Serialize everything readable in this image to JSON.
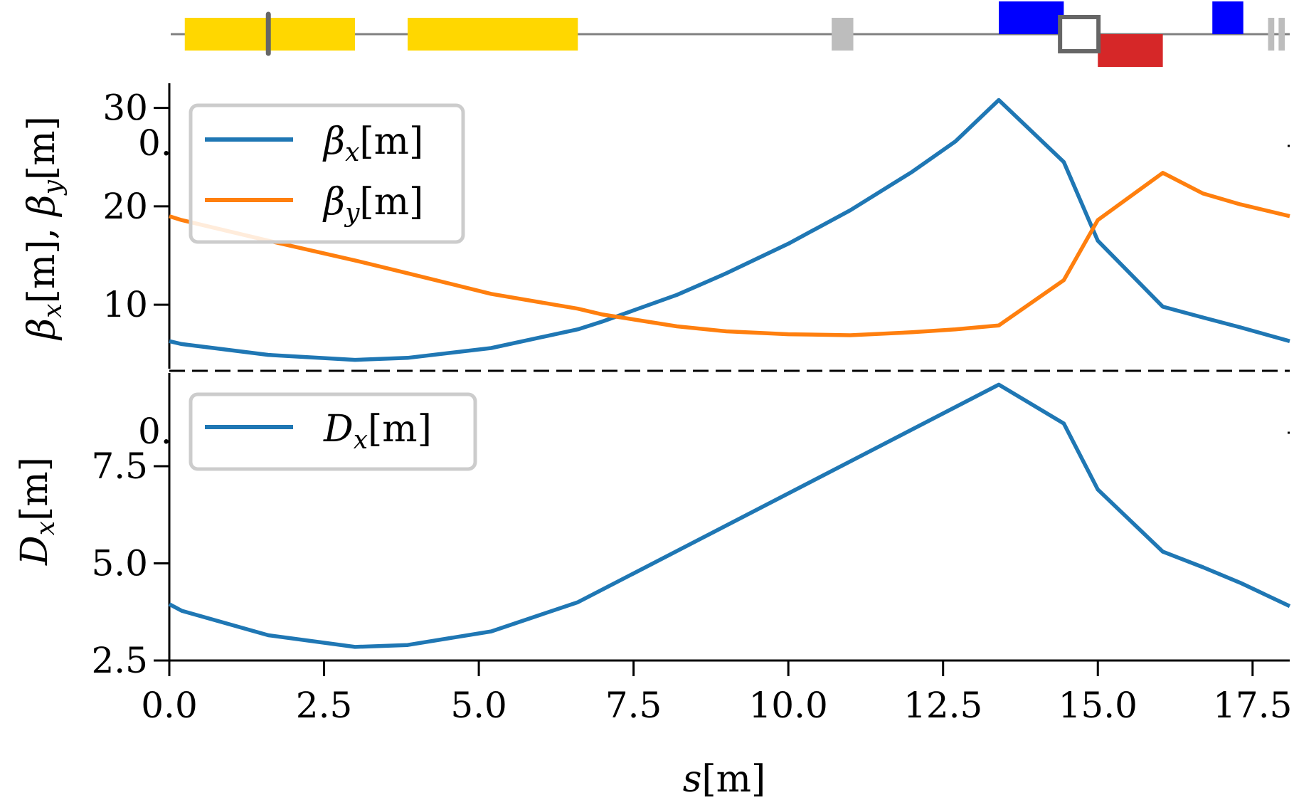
{
  "chart_data": [
    {
      "type": "bar",
      "name": "lattice",
      "elements": [
        {
          "kind": "dipole",
          "s_start": 0.25,
          "s_end": 3.0,
          "side": "center",
          "color": "#ffd700"
        },
        {
          "kind": "dipole",
          "s_start": 3.85,
          "s_end": 6.6,
          "side": "center",
          "color": "#ffd700"
        },
        {
          "kind": "marker",
          "s_start": 10.7,
          "s_end": 11.05,
          "side": "upper-thin",
          "color": "#bdbdbd"
        },
        {
          "kind": "quad-focusing",
          "s_start": 13.4,
          "s_end": 14.45,
          "side": "upper",
          "color": "#0000ff"
        },
        {
          "kind": "quad-defocusing",
          "s_start": 15.0,
          "s_end": 16.05,
          "side": "lower",
          "color": "#d62728"
        },
        {
          "kind": "quad-focusing",
          "s_start": 16.85,
          "s_end": 17.35,
          "side": "upper",
          "color": "#0000ff"
        },
        {
          "kind": "marker",
          "s_start": 17.75,
          "s_end": 17.85,
          "side": "upper-thin",
          "color": "#bdbdbd"
        },
        {
          "kind": "marker",
          "s_start": 17.92,
          "s_end": 18.02,
          "side": "upper-thin",
          "color": "#bdbdbd"
        }
      ],
      "markers": [
        {
          "kind": "monitor",
          "s": 1.6,
          "color": "#666666"
        },
        {
          "kind": "box",
          "s": 14.7,
          "color": "#666666"
        }
      ],
      "xlim": [
        0,
        18.1
      ]
    },
    {
      "type": "line",
      "name": "beta",
      "ylabel": "βx[m], βy[m]",
      "ylim": [
        3.5,
        32.5
      ],
      "yticks": [
        "10",
        "20",
        "30"
      ],
      "ytick_values": [
        10,
        20,
        30
      ],
      "partial_label": "0.",
      "legend_position": "top-left",
      "x": [
        0,
        0.2,
        1.6,
        3.0,
        3.85,
        5.2,
        6.6,
        7.0,
        8.2,
        9.0,
        10.0,
        11.0,
        12.0,
        12.7,
        13.4,
        14.45,
        15.0,
        16.05,
        16.7,
        17.3,
        18.1
      ],
      "series": [
        {
          "name": "βx[m]",
          "color": "#1f77b4",
          "values": [
            6.3,
            6.0,
            4.9,
            4.4,
            4.6,
            5.6,
            7.5,
            8.3,
            11.0,
            13.2,
            16.2,
            19.6,
            23.5,
            26.6,
            30.8,
            24.5,
            16.5,
            9.8,
            8.7,
            7.7,
            6.3
          ]
        },
        {
          "name": "βy[m]",
          "color": "#ff7f0e",
          "values": [
            19.0,
            18.6,
            16.5,
            14.5,
            13.2,
            11.1,
            9.6,
            9.0,
            7.8,
            7.3,
            7.0,
            6.9,
            7.2,
            7.5,
            7.9,
            12.5,
            18.6,
            23.4,
            21.3,
            20.2,
            19.0
          ]
        }
      ]
    },
    {
      "type": "line",
      "name": "dispersion",
      "ylabel": "Dx[m]",
      "xlabel": "s[m]",
      "ylim": [
        2.5,
        9.9
      ],
      "xlim": [
        0,
        18.1
      ],
      "yticks": [
        "2.5",
        "5.0",
        "7.5"
      ],
      "ytick_values": [
        2.5,
        5.0,
        7.5
      ],
      "xticks": [
        "0.0",
        "2.5",
        "5.0",
        "7.5",
        "10.0",
        "12.5",
        "15.0",
        "17.5"
      ],
      "xtick_values": [
        0.0,
        2.5,
        5.0,
        7.5,
        10.0,
        12.5,
        15.0,
        17.5
      ],
      "partial_label": "0.",
      "legend_position": "top-left",
      "x": [
        0,
        0.2,
        1.6,
        3.0,
        3.85,
        5.2,
        6.6,
        13.4,
        14.45,
        15.0,
        16.05,
        16.7,
        17.3,
        18.1
      ],
      "series": [
        {
          "name": "Dx[m]",
          "color": "#1f77b4",
          "values": [
            3.95,
            3.78,
            3.15,
            2.85,
            2.9,
            3.25,
            4.0,
            9.6,
            8.6,
            6.9,
            5.3,
            4.9,
            4.5,
            3.9
          ]
        }
      ]
    }
  ],
  "labels": {
    "beta_axis_parts": [
      "β",
      "x",
      "[m], ",
      "β",
      "y",
      "[m]"
    ],
    "dispersion_axis_parts": [
      "D",
      "x",
      "[m]"
    ],
    "s_axis_parts": [
      "s",
      "[m]"
    ],
    "legend_beta_x_parts": [
      "β",
      "x",
      "[m]"
    ],
    "legend_beta_y_parts": [
      "β",
      "y",
      "[m]"
    ],
    "legend_dx_parts": [
      "D",
      "x",
      "[m]"
    ]
  }
}
